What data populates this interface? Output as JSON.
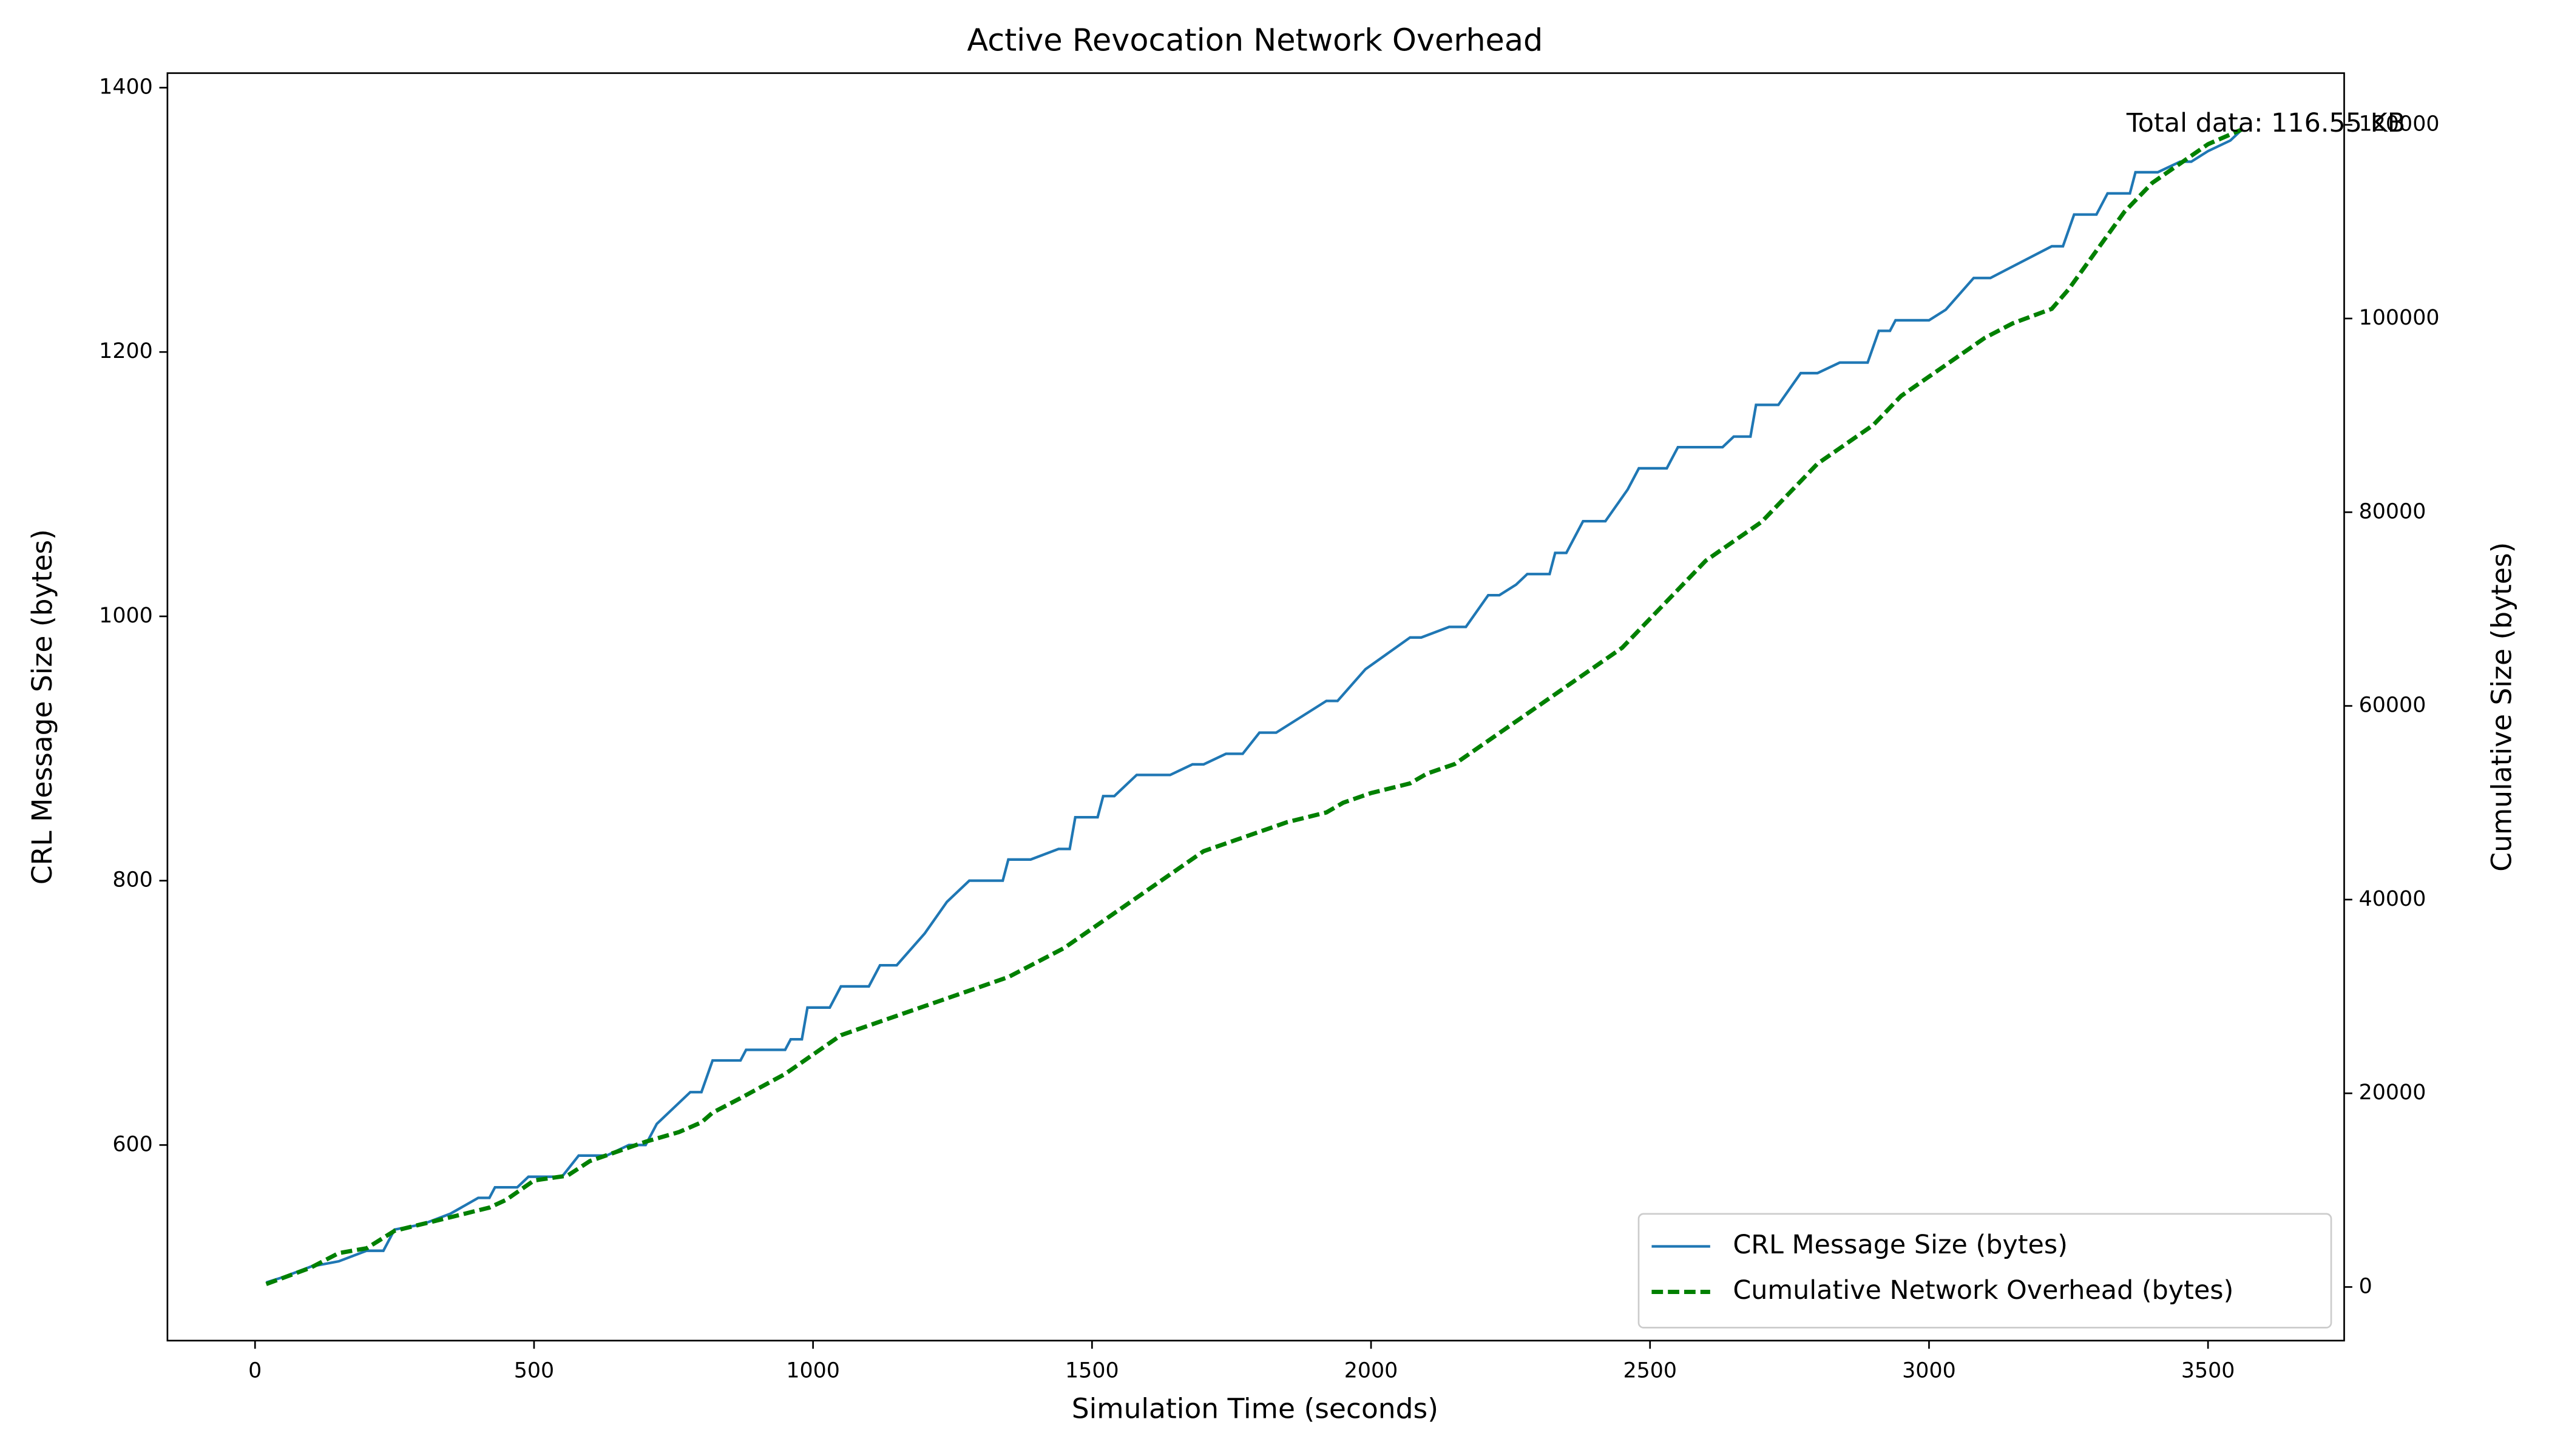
{
  "chart_data": {
    "type": "line",
    "title": "Active Revocation Network Overhead",
    "x_label": "Simulation Time (seconds)",
    "y_label": "CRL Message Size (bytes)",
    "y2_label": "Cumulative Size (bytes)",
    "xlim": [
      -157,
      3744
    ],
    "xticks": [
      0,
      500,
      1000,
      1500,
      2000,
      2500,
      3000,
      3500
    ],
    "ylim": [
      452,
      1411
    ],
    "yticks": [
      600,
      800,
      1000,
      1200,
      1400
    ],
    "y2lim": [
      -5537,
      125336
    ],
    "y2ticks": [
      0,
      20000,
      40000,
      60000,
      80000,
      100000,
      120000
    ],
    "legend": "lower right",
    "annotation": {
      "text": "Total data: 116.55 KB",
      "x": 3354,
      "y": 120000,
      "color": "#0000ff"
    },
    "series": [
      {
        "name": "CRL Message Size (bytes)",
        "color": "#1f77b4",
        "dash": "solid",
        "x": [
          20,
          50,
          100,
          150,
          200,
          230,
          250,
          300,
          350,
          400,
          420,
          430,
          470,
          490,
          550,
          580,
          630,
          670,
          700,
          720,
          780,
          800,
          820,
          870,
          880,
          950,
          960,
          980,
          990,
          1030,
          1050,
          1100,
          1120,
          1150,
          1200,
          1240,
          1280,
          1340,
          1350,
          1390,
          1440,
          1460,
          1470,
          1510,
          1520,
          1540,
          1580,
          1640,
          1680,
          1700,
          1740,
          1770,
          1800,
          1830,
          1920,
          1940,
          1990,
          2070,
          2090,
          2140,
          2170,
          2210,
          2230,
          2260,
          2280,
          2320,
          2330,
          2350,
          2380,
          2420,
          2460,
          2480,
          2530,
          2550,
          2630,
          2650,
          2680,
          2690,
          2730,
          2770,
          2800,
          2840,
          2890,
          2910,
          2930,
          2940,
          3000,
          3030,
          3080,
          3110,
          3220,
          3240,
          3260,
          3300,
          3320,
          3360,
          3370,
          3410,
          3450,
          3470,
          3500,
          3540,
          3560
        ],
        "values": [
          496,
          500,
          508,
          512,
          520,
          520,
          536,
          540,
          548,
          560,
          560,
          568,
          568,
          576,
          576,
          592,
          592,
          600,
          600,
          616,
          640,
          640,
          664,
          664,
          672,
          672,
          680,
          680,
          704,
          704,
          720,
          720,
          736,
          736,
          760,
          784,
          800,
          800,
          816,
          816,
          824,
          824,
          848,
          848,
          864,
          864,
          880,
          880,
          888,
          888,
          896,
          896,
          912,
          912,
          936,
          936,
          960,
          984,
          984,
          992,
          992,
          1016,
          1016,
          1024,
          1032,
          1032,
          1048,
          1048,
          1072,
          1072,
          1096,
          1112,
          1112,
          1128,
          1128,
          1136,
          1136,
          1160,
          1160,
          1184,
          1184,
          1192,
          1192,
          1216,
          1216,
          1224,
          1224,
          1232,
          1256,
          1256,
          1280,
          1280,
          1304,
          1304,
          1320,
          1320,
          1336,
          1336,
          1344,
          1344,
          1352,
          1360,
          1368
        ]
      },
      {
        "name": "Cumulative Network Overhead (bytes)",
        "color": "#008000",
        "dash": "dashed",
        "axis": "y2",
        "x": [
          20,
          100,
          150,
          200,
          250,
          300,
          350,
          420,
          450,
          500,
          560,
          600,
          650,
          700,
          760,
          800,
          820,
          870,
          950,
          1000,
          1050,
          1100,
          1150,
          1200,
          1250,
          1350,
          1400,
          1450,
          1500,
          1550,
          1600,
          1650,
          1700,
          1800,
          1850,
          1920,
          1950,
          2000,
          2070,
          2100,
          2150,
          2200,
          2250,
          2300,
          2350,
          2400,
          2450,
          2500,
          2550,
          2600,
          2650,
          2700,
          2750,
          2800,
          2850,
          2900,
          2950,
          3000,
          3050,
          3100,
          3150,
          3220,
          3250,
          3300,
          3350,
          3400,
          3450,
          3500,
          3560
        ],
        "values": [
          300,
          2000,
          3500,
          4000,
          5800,
          6500,
          7200,
          8200,
          9000,
          11000,
          11500,
          13000,
          14000,
          15000,
          16000,
          17000,
          18000,
          19500,
          22000,
          24000,
          26000,
          27000,
          28000,
          29000,
          30000,
          32000,
          33500,
          35000,
          37000,
          39000,
          41000,
          43000,
          45000,
          47000,
          48000,
          49000,
          50000,
          51000,
          52000,
          53000,
          54000,
          56000,
          58000,
          60000,
          62000,
          64000,
          66000,
          69000,
          72000,
          75000,
          77000,
          79000,
          82000,
          85000,
          87000,
          89000,
          92000,
          94000,
          96000,
          98000,
          99500,
          101000,
          103000,
          107000,
          111000,
          114000,
          116000,
          118000,
          119500
        ]
      }
    ]
  }
}
